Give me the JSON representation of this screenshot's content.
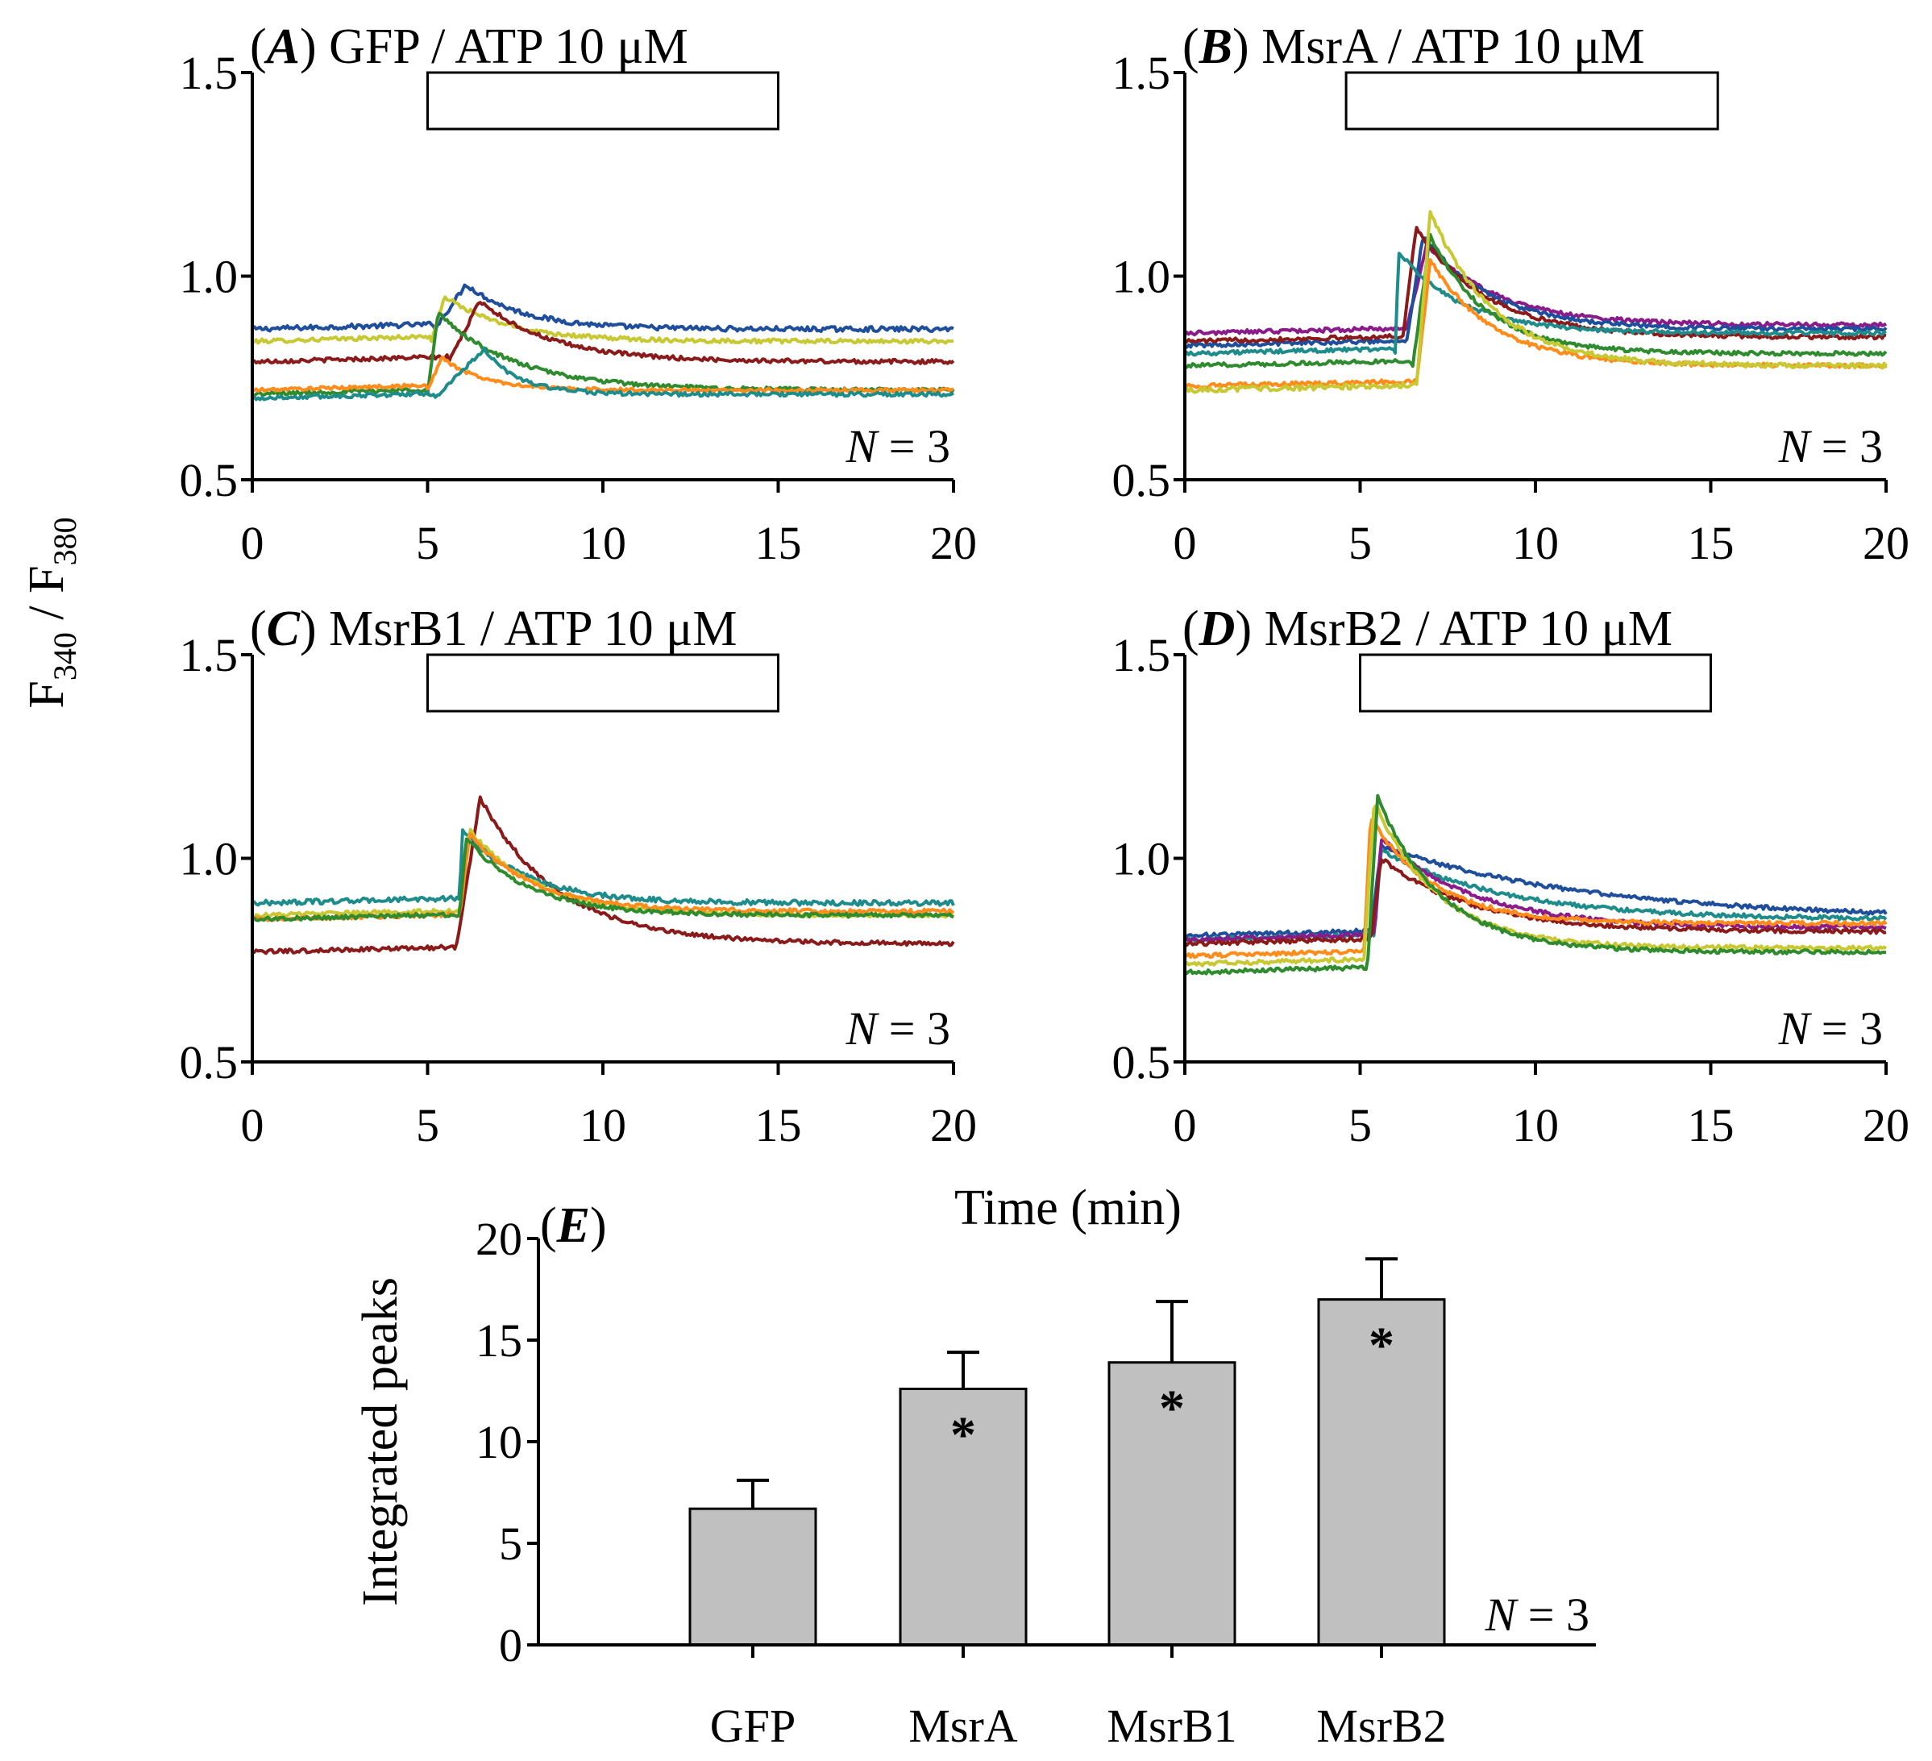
{
  "chart_data": [
    {
      "id": "A",
      "type": "line",
      "title_letter": "A",
      "title_text": "GFP / ATP 10 μM",
      "xlabel": "Time (min)",
      "ylabel_main": "F",
      "ylabel_sub1": "340",
      "ylabel_mid": " / F",
      "ylabel_sub2": "380",
      "xlim": [
        0,
        20
      ],
      "ylim": [
        0.5,
        1.5
      ],
      "xticks": [
        0,
        5,
        10,
        15,
        20
      ],
      "yticks": [
        0.5,
        1.0,
        1.5
      ],
      "ytick_labels": [
        "0.5",
        "1.0",
        "1.5"
      ],
      "stimulus": [
        5,
        15
      ],
      "n_label_italic": "N",
      "n_label_rest": " = 3",
      "series": [
        {
          "color": "#1f4e9c",
          "base": 0.87,
          "onset": 5.2,
          "peak": 0.98,
          "peak_t": 6.1,
          "end": 0.87,
          "tau": 1.6,
          "noise": 0.006
        },
        {
          "color": "#c8c832",
          "base": 0.84,
          "onset": 5.1,
          "peak": 0.95,
          "peak_t": 5.5,
          "end": 0.84,
          "tau": 1.8,
          "noise": 0.005
        },
        {
          "color": "#8b1a1a",
          "base": 0.79,
          "onset": 5.6,
          "peak": 0.94,
          "peak_t": 6.5,
          "end": 0.79,
          "tau": 2.0,
          "noise": 0.005
        },
        {
          "color": "#2e8b2e",
          "base": 0.71,
          "onset": 5.0,
          "peak": 0.91,
          "peak_t": 5.3,
          "end": 0.72,
          "tau": 2.2,
          "noise": 0.005
        },
        {
          "color": "#ff8c1a",
          "base": 0.72,
          "onset": 5.0,
          "peak": 0.8,
          "peak_t": 5.4,
          "end": 0.72,
          "tau": 1.2,
          "noise": 0.004
        },
        {
          "color": "#1f8c8c",
          "base": 0.7,
          "onset": 5.2,
          "peak": 0.82,
          "peak_t": 6.6,
          "end": 0.71,
          "tau": 1.0,
          "noise": 0.005
        }
      ]
    },
    {
      "id": "B",
      "type": "line",
      "title_letter": "B",
      "title_text": "MsrA / ATP 10 μM",
      "xlim": [
        0,
        20
      ],
      "ylim": [
        0.5,
        1.5
      ],
      "xticks": [
        0,
        5,
        10,
        15,
        20
      ],
      "yticks": [
        0.5,
        1.0,
        1.5
      ],
      "ytick_labels": [
        "0.5",
        "1.0",
        "1.5"
      ],
      "stimulus": [
        4.6,
        15.2
      ],
      "n_label_italic": "N",
      "n_label_rest": " = 3",
      "series": [
        {
          "color": "#8b1a8b",
          "base": 0.86,
          "onset": 6.3,
          "peak": 1.08,
          "peak_t": 6.9,
          "end": 0.88,
          "tau": 2.0,
          "noise": 0.005
        },
        {
          "color": "#1f4e9c",
          "base": 0.83,
          "onset": 6.3,
          "peak": 1.1,
          "peak_t": 6.8,
          "end": 0.87,
          "tau": 1.9,
          "noise": 0.005
        },
        {
          "color": "#8b1a1a",
          "base": 0.84,
          "onset": 6.2,
          "peak": 1.12,
          "peak_t": 6.6,
          "end": 0.85,
          "tau": 2.0,
          "noise": 0.005
        },
        {
          "color": "#1f8c8c",
          "base": 0.81,
          "onset": 6.0,
          "peak": 1.06,
          "peak_t": 6.1,
          "end": 0.86,
          "tau": 1.8,
          "noise": 0.005
        },
        {
          "color": "#2e8b2e",
          "base": 0.78,
          "onset": 6.5,
          "peak": 1.1,
          "peak_t": 7.0,
          "end": 0.81,
          "tau": 1.6,
          "noise": 0.005
        },
        {
          "color": "#ff8c1a",
          "base": 0.73,
          "onset": 6.6,
          "peak": 1.04,
          "peak_t": 7.0,
          "end": 0.78,
          "tau": 1.8,
          "noise": 0.005
        },
        {
          "color": "#c8c832",
          "base": 0.72,
          "onset": 6.6,
          "peak": 1.16,
          "peak_t": 7.0,
          "end": 0.78,
          "tau": 1.8,
          "noise": 0.006
        }
      ]
    },
    {
      "id": "C",
      "type": "line",
      "title_letter": "C",
      "title_text": "MsrB1 / ATP 10 μM",
      "xlim": [
        0,
        20
      ],
      "ylim": [
        0.5,
        1.5
      ],
      "xticks": [
        0,
        5,
        10,
        15,
        20
      ],
      "yticks": [
        0.5,
        1.0,
        1.5
      ],
      "ytick_labels": [
        "0.5",
        "1.0",
        "1.5"
      ],
      "stimulus": [
        5,
        15
      ],
      "n_label_italic": "N",
      "n_label_rest": " = 3",
      "series": [
        {
          "color": "#8b1a1a",
          "base": 0.77,
          "onset": 5.8,
          "peak": 1.15,
          "peak_t": 6.5,
          "end": 0.79,
          "tau": 2.2,
          "noise": 0.005
        },
        {
          "color": "#1f8c8c",
          "base": 0.89,
          "onset": 5.9,
          "peak": 1.07,
          "peak_t": 6.0,
          "end": 0.89,
          "tau": 1.8,
          "noise": 0.006
        },
        {
          "color": "#c8c832",
          "base": 0.86,
          "onset": 5.9,
          "peak": 1.07,
          "peak_t": 6.2,
          "end": 0.86,
          "tau": 1.9,
          "noise": 0.005
        },
        {
          "color": "#ff8c1a",
          "base": 0.85,
          "onset": 5.9,
          "peak": 1.06,
          "peak_t": 6.2,
          "end": 0.87,
          "tau": 1.8,
          "noise": 0.005
        },
        {
          "color": "#2e8b2e",
          "base": 0.85,
          "onset": 5.9,
          "peak": 1.05,
          "peak_t": 6.1,
          "end": 0.86,
          "tau": 1.8,
          "noise": 0.005
        }
      ]
    },
    {
      "id": "D",
      "type": "line",
      "title_letter": "D",
      "title_text": "MsrB2 / ATP 10 μM",
      "xlim": [
        0,
        20
      ],
      "ylim": [
        0.5,
        1.5
      ],
      "xticks": [
        0,
        5,
        10,
        15,
        20
      ],
      "yticks": [
        0.5,
        1.0,
        1.5
      ],
      "ytick_labels": [
        "0.5",
        "1.0",
        "1.5"
      ],
      "stimulus": [
        5,
        15
      ],
      "n_label_italic": "N",
      "n_label_rest": " = 3",
      "series": [
        {
          "color": "#1f4e9c",
          "base": 0.81,
          "onset": 5.3,
          "peak": 1.03,
          "peak_t": 5.6,
          "end": 0.85,
          "tau": 6.0,
          "noise": 0.005
        },
        {
          "color": "#1f8c8c",
          "base": 0.8,
          "onset": 5.4,
          "peak": 1.02,
          "peak_t": 5.6,
          "end": 0.85,
          "tau": 3.5,
          "noise": 0.005
        },
        {
          "color": "#8b1a8b",
          "base": 0.8,
          "onset": 5.4,
          "peak": 1.05,
          "peak_t": 5.6,
          "end": 0.83,
          "tau": 2.6,
          "noise": 0.005
        },
        {
          "color": "#8b1a1a",
          "base": 0.79,
          "onset": 5.3,
          "peak": 1.0,
          "peak_t": 5.6,
          "end": 0.82,
          "tau": 2.6,
          "noise": 0.005
        },
        {
          "color": "#ff8c1a",
          "base": 0.76,
          "onset": 5.1,
          "peak": 1.1,
          "peak_t": 5.3,
          "end": 0.84,
          "tau": 1.8,
          "noise": 0.005
        },
        {
          "color": "#c8c832",
          "base": 0.74,
          "onset": 5.1,
          "peak": 1.14,
          "peak_t": 5.4,
          "end": 0.78,
          "tau": 1.8,
          "noise": 0.005
        },
        {
          "color": "#2e8b2e",
          "base": 0.72,
          "onset": 5.2,
          "peak": 1.15,
          "peak_t": 5.5,
          "end": 0.77,
          "tau": 1.8,
          "noise": 0.005
        }
      ]
    },
    {
      "id": "E",
      "type": "bar",
      "title_letter": "E",
      "categories": [
        "GFP",
        "MsrA",
        "MsrB1",
        "MsrB2"
      ],
      "values": [
        6.7,
        12.6,
        13.9,
        17.0
      ],
      "errors": [
        1.4,
        1.8,
        3.0,
        2.0
      ],
      "significance": [
        "",
        "*",
        "*",
        "*"
      ],
      "ylabel": "Integrated peaks",
      "ylim": [
        0,
        20
      ],
      "yticks": [
        0,
        5,
        10,
        15,
        20
      ],
      "ytick_labels": [
        "0",
        "5",
        "10",
        "15",
        "20"
      ],
      "n_label_italic": "N",
      "n_label_rest": " = 3"
    }
  ]
}
